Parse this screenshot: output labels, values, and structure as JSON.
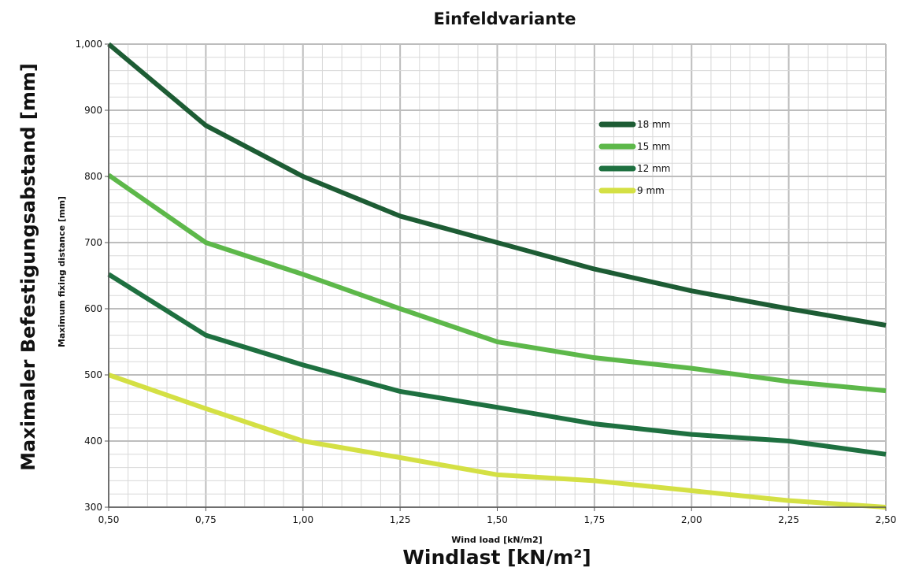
{
  "chart_data": {
    "type": "line",
    "title": "Einfeldvariante",
    "xlabel": "Windlast [kN/m²]",
    "xlabel_secondary": "Wind load [kN/m2]",
    "ylabel": "Maximaler Befestigungsabstand [mm]",
    "ylabel_secondary": "Maximum fixing distance [mm]",
    "x": [
      0.5,
      0.75,
      1.0,
      1.25,
      1.5,
      1.75,
      2.0,
      2.25,
      2.5
    ],
    "x_tick_labels": [
      "0,50",
      "0,75",
      "1,00",
      "1,25",
      "1,50",
      "1,75",
      "2,00",
      "2,25",
      "2,50"
    ],
    "y_tick_values": [
      300,
      400,
      500,
      600,
      700,
      800,
      900,
      1000
    ],
    "y_tick_labels": [
      "300",
      "400",
      "500",
      "600",
      "700",
      "800",
      "900",
      "1,000"
    ],
    "xlim": [
      0.5,
      2.5
    ],
    "ylim": [
      300,
      1000
    ],
    "grid": true,
    "legend_position": "top-right",
    "series": [
      {
        "name": "18 mm",
        "color": "#1d5c34",
        "values": [
          1000,
          877,
          800,
          740,
          700,
          660,
          627,
          600,
          575
        ]
      },
      {
        "name": "15 mm",
        "color": "#5db84a",
        "values": [
          802,
          700,
          652,
          600,
          550,
          526,
          510,
          490,
          476
        ]
      },
      {
        "name": "12 mm",
        "color": "#1e7040",
        "values": [
          652,
          560,
          515,
          475,
          451,
          426,
          410,
          400,
          380
        ]
      },
      {
        "name": "9 mm",
        "color": "#d4e044",
        "values": [
          500,
          449,
          400,
          375,
          349,
          340,
          325,
          310,
          300
        ]
      }
    ]
  }
}
